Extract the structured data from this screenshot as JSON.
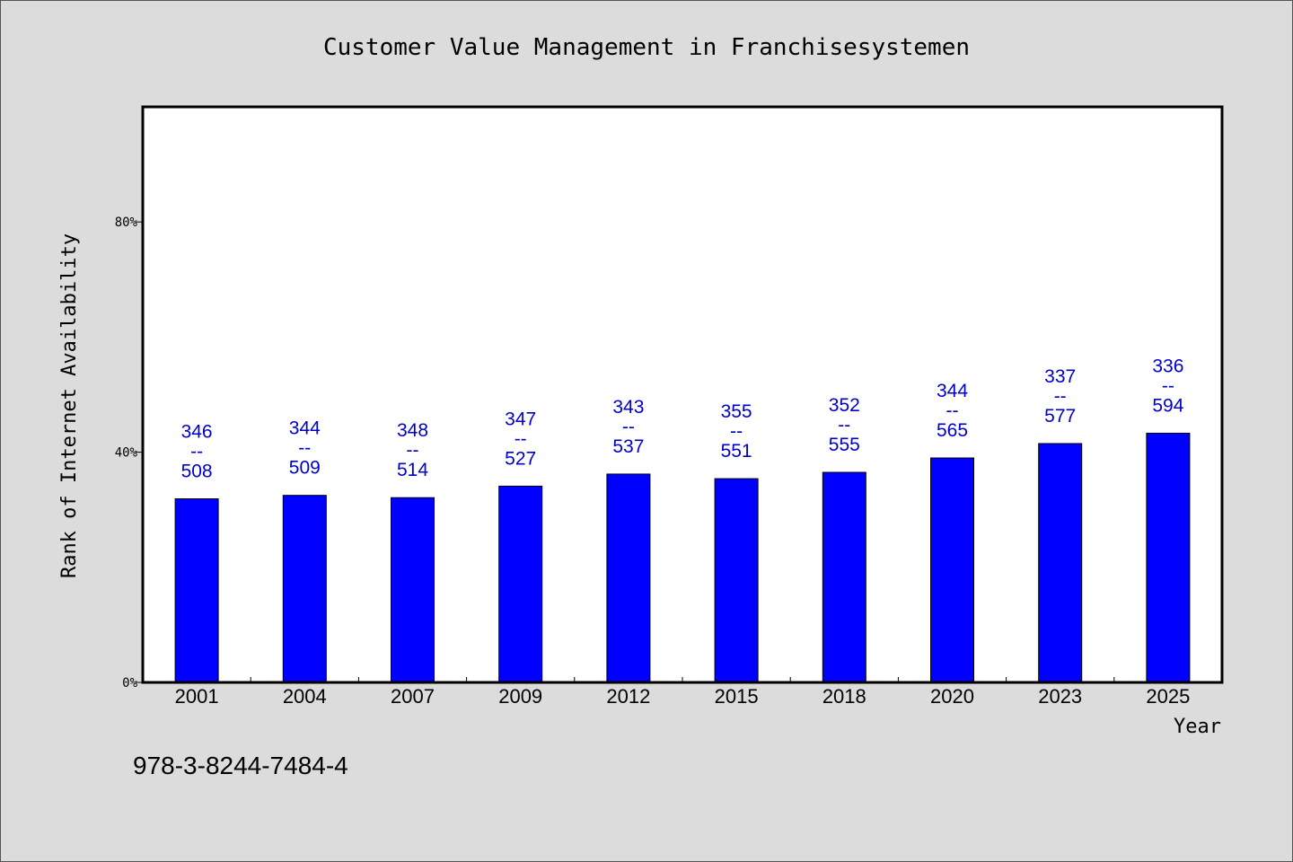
{
  "chart_data": {
    "type": "bar",
    "title": "Customer Value Management in Franchisesystemen",
    "xlabel": "Year",
    "ylabel": "Rank of Internet Availability",
    "categories": [
      "2001",
      "2004",
      "2007",
      "2009",
      "2012",
      "2015",
      "2018",
      "2020",
      "2023",
      "2025"
    ],
    "values": [
      31.9,
      32.5,
      32.1,
      34.1,
      36.2,
      35.4,
      36.5,
      39.0,
      41.5,
      43.3
    ],
    "labels_top": [
      "346",
      "344",
      "348",
      "347",
      "343",
      "355",
      "352",
      "344",
      "337",
      "336"
    ],
    "labels_bottom": [
      "508",
      "509",
      "514",
      "527",
      "537",
      "551",
      "555",
      "565",
      "577",
      "594"
    ],
    "label_separator": "--",
    "ylim": [
      0,
      100
    ],
    "yticks": [
      0,
      40,
      80
    ],
    "ytick_labels": [
      "0%",
      "40%",
      "80%"
    ],
    "bar_color": "#0000ff",
    "label_color": "#0000cc",
    "grid": false,
    "legend": "none"
  },
  "footer": {
    "isbn": "978-3-8244-7484-4"
  }
}
